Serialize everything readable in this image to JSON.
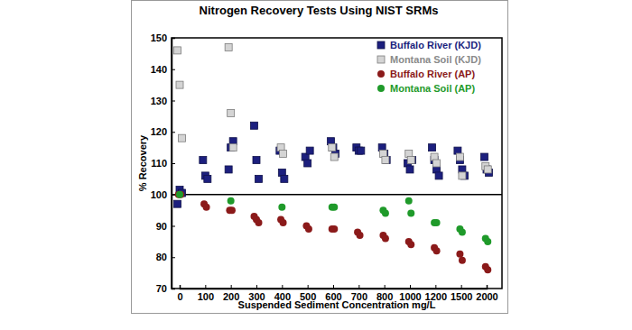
{
  "chart_data": {
    "type": "scatter",
    "title": "Nitrogen Recovery Tests Using NIST SRMs",
    "x_label": "Suspended Sediment Concentration mg/L",
    "y_label": "% Recovery",
    "categories": [
      "0",
      "100",
      "200",
      "300",
      "400",
      "500",
      "600",
      "700",
      "800",
      "1000",
      "1200",
      "1500",
      "2000"
    ],
    "ylim": [
      70,
      150
    ],
    "yticks": [
      70,
      80,
      90,
      100,
      110,
      120,
      130,
      140,
      150
    ],
    "hline": 100,
    "grid": false,
    "legend": "upper right",
    "series": [
      {
        "name": "Buffalo River (KJD)",
        "color": "#1c1f7e",
        "marker": "square",
        "x": [
          "0",
          "0",
          "0",
          "100",
          "100",
          "100",
          "200",
          "200",
          "200",
          "300",
          "300",
          "300",
          "400",
          "400",
          "400",
          "500",
          "500",
          "500",
          "600",
          "600",
          "600",
          "700",
          "700",
          "700",
          "800",
          "800",
          "800",
          "1000",
          "1000",
          "1000",
          "1200",
          "1200",
          "1200",
          "1200",
          "1500",
          "1500",
          "1500",
          "1500",
          "2000",
          "2000",
          "2000"
        ],
        "values": [
          97,
          101.5,
          100.5,
          111,
          106,
          105,
          108,
          115,
          117,
          122,
          111,
          105,
          114,
          107,
          105,
          112,
          110,
          114,
          117,
          115,
          113,
          115,
          114,
          114,
          115,
          113,
          111,
          110,
          108,
          111,
          115,
          111,
          108,
          106,
          114,
          111,
          108,
          106,
          112,
          108,
          107
        ]
      },
      {
        "name": "Montana Soil (KJD)",
        "color": "#d4d4d4",
        "marker": "square",
        "x": [
          "0",
          "0",
          "0",
          "200",
          "200",
          "200",
          "400",
          "400",
          "600",
          "600",
          "800",
          "800",
          "1000",
          "1000",
          "1200",
          "1200",
          "1500",
          "1500",
          "2000",
          "2000"
        ],
        "values": [
          146,
          135,
          118,
          147,
          126,
          115,
          115,
          113,
          115,
          112,
          113,
          111,
          113,
          111,
          112,
          110,
          112,
          106,
          109,
          108
        ]
      },
      {
        "name": "Buffalo River (AP)",
        "color": "#8b1a1a",
        "marker": "circle",
        "x": [
          "0",
          "0",
          "100",
          "100",
          "200",
          "200",
          "300",
          "300",
          "300",
          "400",
          "400",
          "500",
          "500",
          "600",
          "600",
          "700",
          "700",
          "800",
          "800",
          "1000",
          "1000",
          "1200",
          "1200",
          "1500",
          "1500",
          "2000",
          "2000"
        ],
        "values": [
          100,
          100,
          97,
          96,
          95,
          95,
          93,
          92,
          91,
          92,
          91,
          90,
          89,
          89,
          89,
          88,
          87,
          87,
          86,
          85,
          84,
          83,
          82,
          81,
          79,
          77,
          76
        ]
      },
      {
        "name": "Montana Soil (AP)",
        "color": "#1f9a2a",
        "marker": "circle",
        "x": [
          "0",
          "200",
          "400",
          "600",
          "600",
          "800",
          "800",
          "1000",
          "1000",
          "1200",
          "1200",
          "1500",
          "1500",
          "2000",
          "2000"
        ],
        "values": [
          100,
          98,
          96,
          96,
          96,
          95,
          94,
          98,
          94,
          91,
          91,
          89,
          88,
          86,
          85
        ]
      }
    ]
  }
}
